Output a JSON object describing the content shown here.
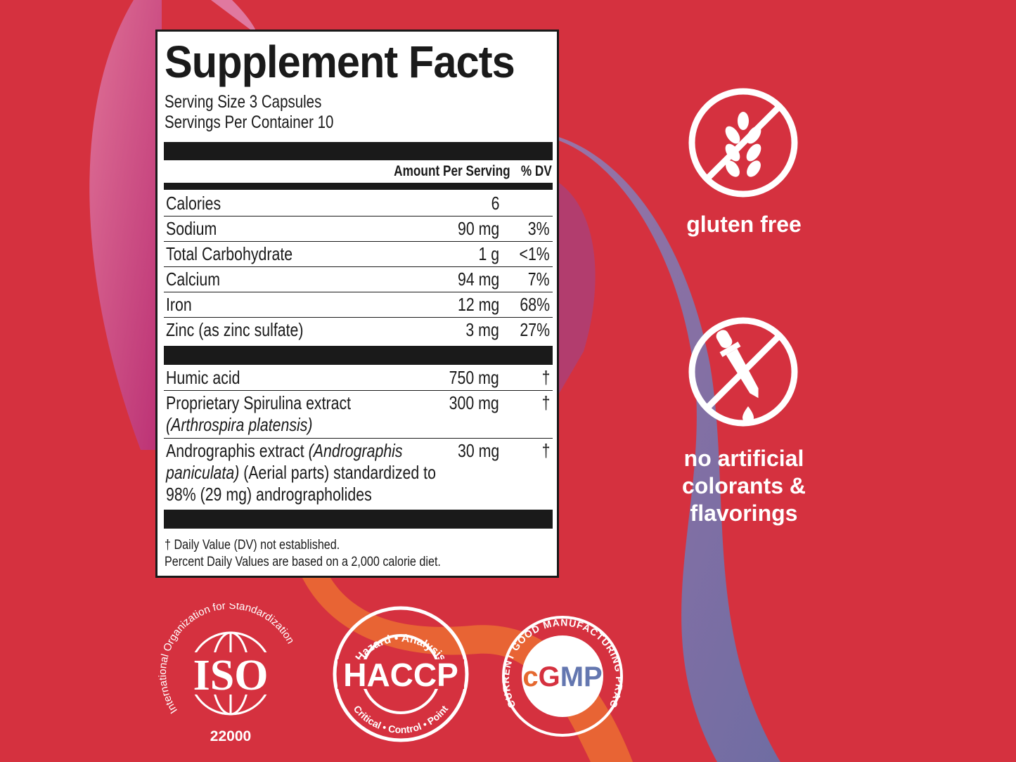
{
  "label": {
    "title": "Supplement Facts",
    "serving_size": "Serving Size 3 Capsules",
    "servings_per_container": "Servings Per Container 10",
    "col_amount": "Amount Per Serving",
    "col_dv": "% DV",
    "nutrients": [
      {
        "name": "Calories",
        "amount": "6",
        "dv": ""
      },
      {
        "name": "Sodium",
        "amount": "90 mg",
        "dv": "3%"
      },
      {
        "name": "Total Carbohydrate",
        "amount": "1 g",
        "dv": "<1%"
      },
      {
        "name": "Calcium",
        "amount": "94 mg",
        "dv": "7%"
      },
      {
        "name": "Iron",
        "amount": "12 mg",
        "dv": "68%"
      },
      {
        "name": "Zinc (as zinc sulfate)",
        "amount": "3 mg",
        "dv": "27%"
      }
    ],
    "ingredients": [
      {
        "name": "Humic acid",
        "amount": "750 mg",
        "dv": "†"
      },
      {
        "name": "Proprietary Spirulina extract",
        "name_italic": "(Arthrospira platensis)",
        "amount": "300 mg",
        "dv": "†"
      },
      {
        "name": "Andrographis extract ",
        "name_italic": "(Andrographis paniculata)",
        "name_rest": " (Aerial parts) standardized to 98% (29 mg) andrographolides",
        "amount": "30 mg",
        "dv": "†"
      }
    ],
    "footnote_1": "† Daily Value (DV) not established.",
    "footnote_2": "Percent Daily Values are based on a 2,000 calorie diet."
  },
  "claims": {
    "gluten_free": "gluten free",
    "no_artificial_line1": "no artificial",
    "no_artificial_line2": "colorants &",
    "no_artificial_line3": "flavorings"
  },
  "certifications": {
    "iso_arc": "International Organization for Standardization",
    "iso_text": "ISO",
    "iso_number": "22000",
    "haccp_top": "Hazard • Analysis",
    "haccp_text": "HACCP",
    "haccp_bottom": "Critical • Control • Point",
    "cgmp_arc": "CURRENT GOOD MANUFACTURING PRACTICE",
    "cgmp_c": "c",
    "cgmp_g": "G",
    "cgmp_mp": "MP"
  },
  "colors": {
    "background": "#d5313f",
    "pink_swoosh": "#c2427a",
    "blue_swoosh": "#6a78b0",
    "orange_swoosh": "#ea6a33",
    "cgmp_orange": "#e5682f",
    "cgmp_red": "#d5313f",
    "cgmp_blue": "#6477b0"
  }
}
